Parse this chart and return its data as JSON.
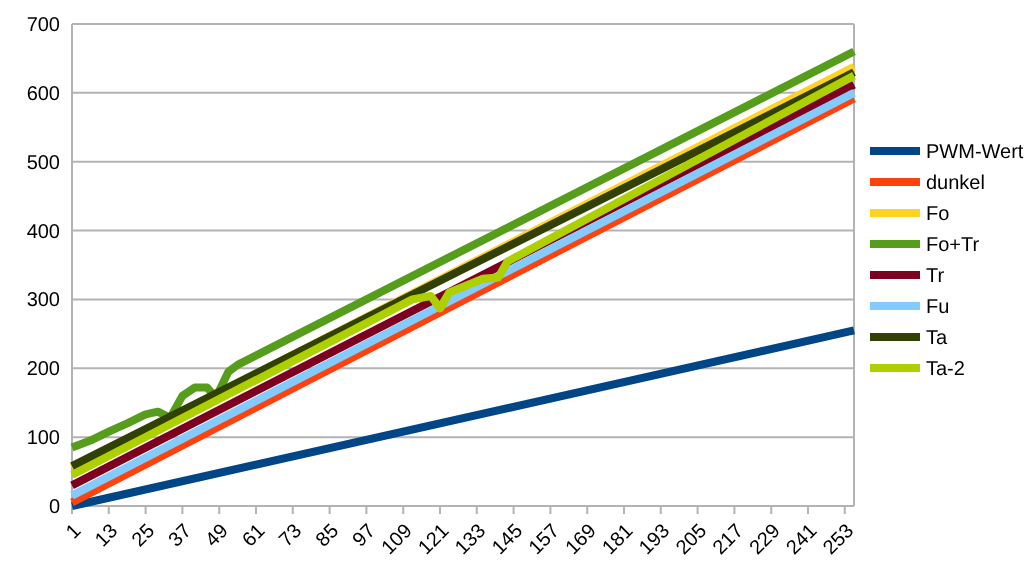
{
  "chart_data": {
    "type": "line",
    "xlim": [
      1,
      256
    ],
    "xticks": [
      1,
      13,
      25,
      37,
      49,
      61,
      73,
      85,
      97,
      109,
      121,
      133,
      145,
      157,
      169,
      181,
      193,
      205,
      217,
      229,
      241,
      253
    ],
    "ylim": [
      0,
      700
    ],
    "yticks": [
      0,
      100,
      200,
      300,
      400,
      500,
      600,
      700
    ],
    "grid": "y",
    "legend": "right",
    "line_style": "solid",
    "series": [
      {
        "name": "PWM-Wert",
        "color": "#004586",
        "x": [
          1,
          256
        ],
        "values": [
          0,
          255
        ]
      },
      {
        "name": "dunkel",
        "color": "#ff420e",
        "x": [
          1,
          256
        ],
        "values": [
          5,
          592
        ]
      },
      {
        "name": "Fo",
        "color": "#ffd320",
        "x": [
          1,
          256
        ],
        "values": [
          55,
          638
        ]
      },
      {
        "name": "Fo+Tr",
        "color": "#579d1c",
        "x": [
          1,
          7,
          13,
          19,
          25,
          29,
          33,
          37,
          41,
          45,
          48,
          52,
          55,
          256
        ],
        "values": [
          85,
          95,
          108,
          120,
          133,
          137,
          128,
          160,
          172,
          172,
          158,
          195,
          205,
          660
        ]
      },
      {
        "name": "Tr",
        "color": "#7e0021",
        "x": [
          1,
          256
        ],
        "values": [
          30,
          612
        ]
      },
      {
        "name": "Fu",
        "color": "#83caff",
        "x": [
          1,
          256
        ],
        "values": [
          15,
          600
        ]
      },
      {
        "name": "Ta",
        "color": "#314004",
        "x": [
          1,
          256
        ],
        "values": [
          58,
          630
        ]
      },
      {
        "name": "Ta-2",
        "color": "#aecf00",
        "x": [
          1,
          112,
          118,
          121,
          124,
          135,
          140,
          143,
          256
        ],
        "values": [
          45,
          300,
          305,
          287,
          310,
          330,
          332,
          355,
          625
        ]
      }
    ]
  }
}
